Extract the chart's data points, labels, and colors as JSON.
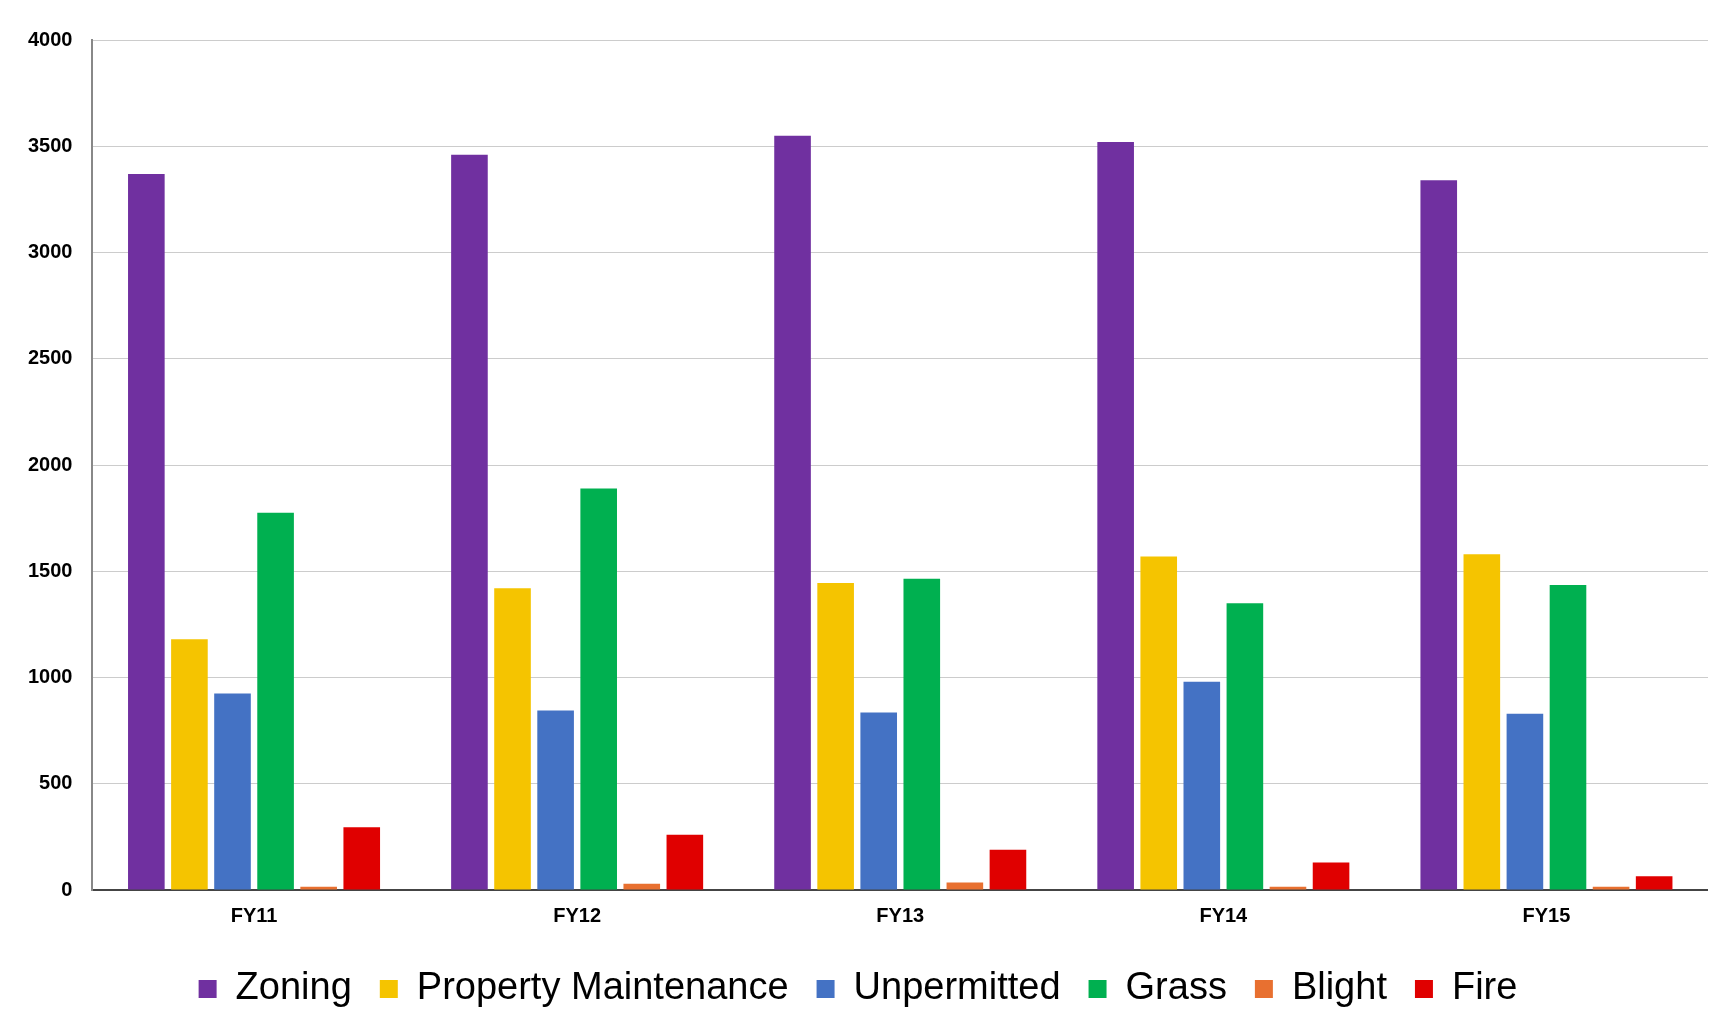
{
  "chart_data": {
    "type": "bar",
    "categories": [
      "FY11",
      "FY12",
      "FY13",
      "FY14",
      "FY15"
    ],
    "series": [
      {
        "name": "Zoning",
        "color": "#7030a0",
        "values": [
          3370,
          3460,
          3550,
          3520,
          3340
        ]
      },
      {
        "name": "Property Maintenance",
        "color": "#f5c400",
        "values": [
          1180,
          1420,
          1445,
          1570,
          1580
        ]
      },
      {
        "name": "Unpermitted",
        "color": "#4472c4",
        "values": [
          925,
          845,
          835,
          980,
          830
        ]
      },
      {
        "name": "Grass",
        "color": "#00b050",
        "values": [
          1775,
          1890,
          1465,
          1350,
          1435
        ]
      },
      {
        "name": "Blight",
        "color": "#e87030",
        "values": [
          15,
          30,
          35,
          15,
          15
        ]
      },
      {
        "name": "Fire",
        "color": "#e00000",
        "values": [
          295,
          260,
          190,
          130,
          65
        ]
      }
    ],
    "ylim": [
      0,
      4000
    ],
    "yticks": [
      0,
      500,
      1000,
      1500,
      2000,
      2500,
      3000,
      3500,
      4000
    ],
    "grid": "y",
    "legend": "bottom"
  }
}
